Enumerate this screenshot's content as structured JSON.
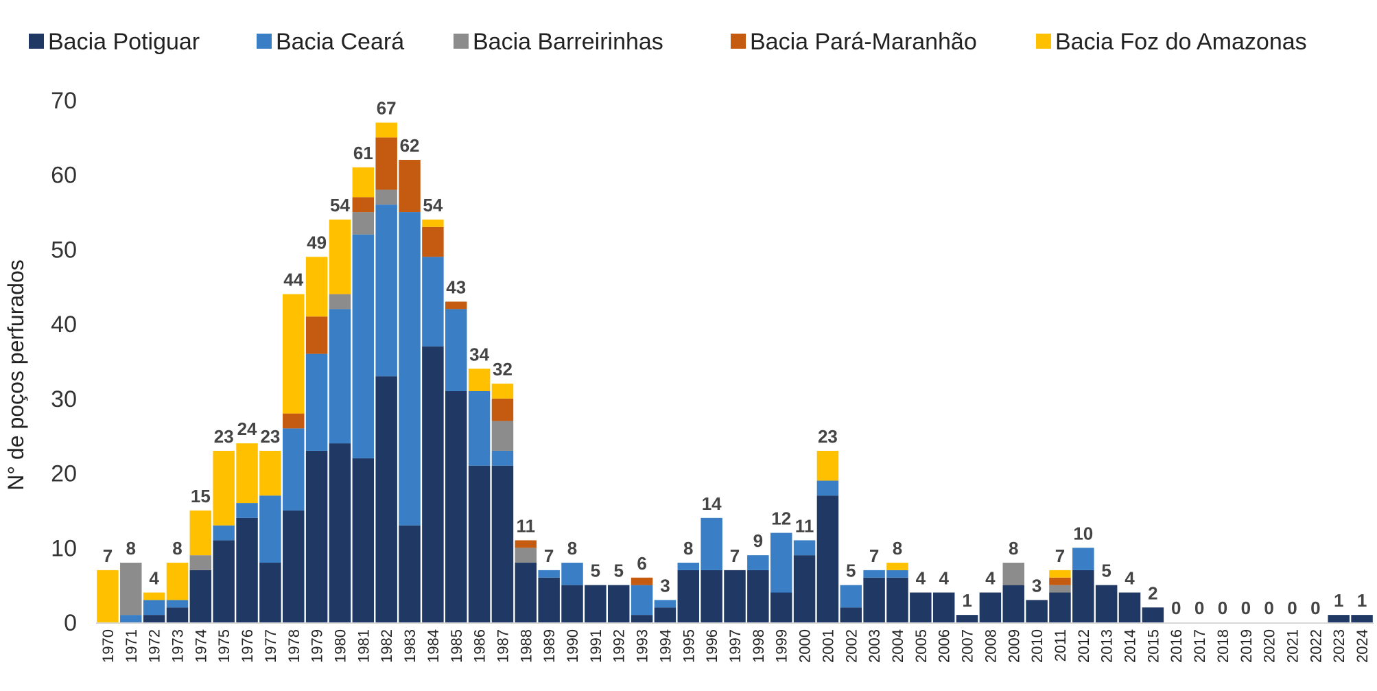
{
  "chart_data": {
    "type": "bar",
    "stacked": true,
    "title": "",
    "xlabel": "",
    "ylabel": "N° de poços perfurados",
    "ylim": [
      0,
      70
    ],
    "yticks": [
      0,
      10,
      20,
      30,
      40,
      50,
      60,
      70
    ],
    "grid": false,
    "legend_position": "top",
    "categories": [
      "1970",
      "1971",
      "1972",
      "1973",
      "1974",
      "1975",
      "1976",
      "1977",
      "1978",
      "1979",
      "1980",
      "1981",
      "1982",
      "1983",
      "1984",
      "1985",
      "1986",
      "1987",
      "1988",
      "1989",
      "1990",
      "1991",
      "1992",
      "1993",
      "1994",
      "1995",
      "1996",
      "1997",
      "1998",
      "1999",
      "2000",
      "2001",
      "2002",
      "2003",
      "2004",
      "2005",
      "2006",
      "2007",
      "2008",
      "2009",
      "2010",
      "2011",
      "2012",
      "2013",
      "2014",
      "2015",
      "2016",
      "2017",
      "2018",
      "2019",
      "2020",
      "2021",
      "2022",
      "2023",
      "2024"
    ],
    "series": [
      {
        "name": "Bacia Potiguar",
        "color": "#1f3864",
        "values": [
          0,
          0,
          1,
          2,
          7,
          11,
          14,
          8,
          15,
          23,
          24,
          22,
          33,
          13,
          37,
          31,
          21,
          21,
          8,
          6,
          5,
          5,
          5,
          1,
          2,
          7,
          7,
          7,
          7,
          4,
          9,
          17,
          2,
          6,
          6,
          4,
          4,
          1,
          4,
          5,
          3,
          4,
          7,
          5,
          4,
          2,
          0,
          0,
          0,
          0,
          0,
          0,
          0,
          1,
          1
        ]
      },
      {
        "name": "Bacia Ceará",
        "color": "#3a7fc6",
        "values": [
          0,
          1,
          2,
          1,
          0,
          2,
          2,
          9,
          11,
          13,
          18,
          30,
          23,
          42,
          12,
          11,
          10,
          2,
          0,
          1,
          3,
          0,
          0,
          4,
          1,
          1,
          7,
          0,
          2,
          8,
          2,
          2,
          3,
          1,
          1,
          0,
          0,
          0,
          0,
          0,
          0,
          0,
          3,
          0,
          0,
          0,
          0,
          0,
          0,
          0,
          0,
          0,
          0,
          0,
          0
        ]
      },
      {
        "name": "Bacia Barreirinhas",
        "color": "#8c8c8c",
        "values": [
          0,
          7,
          0,
          0,
          2,
          0,
          0,
          0,
          0,
          0,
          2,
          3,
          2,
          0,
          0,
          0,
          0,
          4,
          2,
          0,
          0,
          0,
          0,
          0,
          0,
          0,
          0,
          0,
          0,
          0,
          0,
          0,
          0,
          0,
          0,
          0,
          0,
          0,
          0,
          3,
          0,
          1,
          0,
          0,
          0,
          0,
          0,
          0,
          0,
          0,
          0,
          0,
          0,
          0,
          0
        ]
      },
      {
        "name": "Bacia Pará-Maranhão",
        "color": "#c55a11",
        "values": [
          0,
          0,
          0,
          0,
          0,
          0,
          0,
          0,
          2,
          5,
          0,
          2,
          7,
          7,
          4,
          1,
          0,
          3,
          1,
          0,
          0,
          0,
          0,
          1,
          0,
          0,
          0,
          0,
          0,
          0,
          0,
          0,
          0,
          0,
          0,
          0,
          0,
          0,
          0,
          0,
          0,
          1,
          0,
          0,
          0,
          0,
          0,
          0,
          0,
          0,
          0,
          0,
          0,
          0,
          0
        ]
      },
      {
        "name": "Bacia Foz do Amazonas",
        "color": "#ffc000",
        "values": [
          7,
          0,
          1,
          5,
          6,
          10,
          8,
          6,
          16,
          8,
          10,
          4,
          2,
          0,
          1,
          0,
          3,
          2,
          0,
          0,
          0,
          0,
          0,
          0,
          0,
          0,
          0,
          0,
          0,
          0,
          0,
          4,
          0,
          0,
          1,
          0,
          0,
          0,
          0,
          0,
          0,
          1,
          0,
          0,
          0,
          0,
          0,
          0,
          0,
          0,
          0,
          0,
          0,
          0,
          0
        ]
      }
    ],
    "totals": [
      7,
      8,
      4,
      8,
      15,
      23,
      24,
      23,
      44,
      49,
      54,
      61,
      67,
      62,
      54,
      43,
      34,
      32,
      11,
      7,
      8,
      5,
      5,
      6,
      3,
      8,
      14,
      7,
      9,
      12,
      11,
      23,
      5,
      7,
      8,
      4,
      4,
      1,
      4,
      8,
      3,
      7,
      10,
      5,
      4,
      2,
      0,
      0,
      0,
      0,
      0,
      0,
      0,
      1,
      1
    ]
  }
}
